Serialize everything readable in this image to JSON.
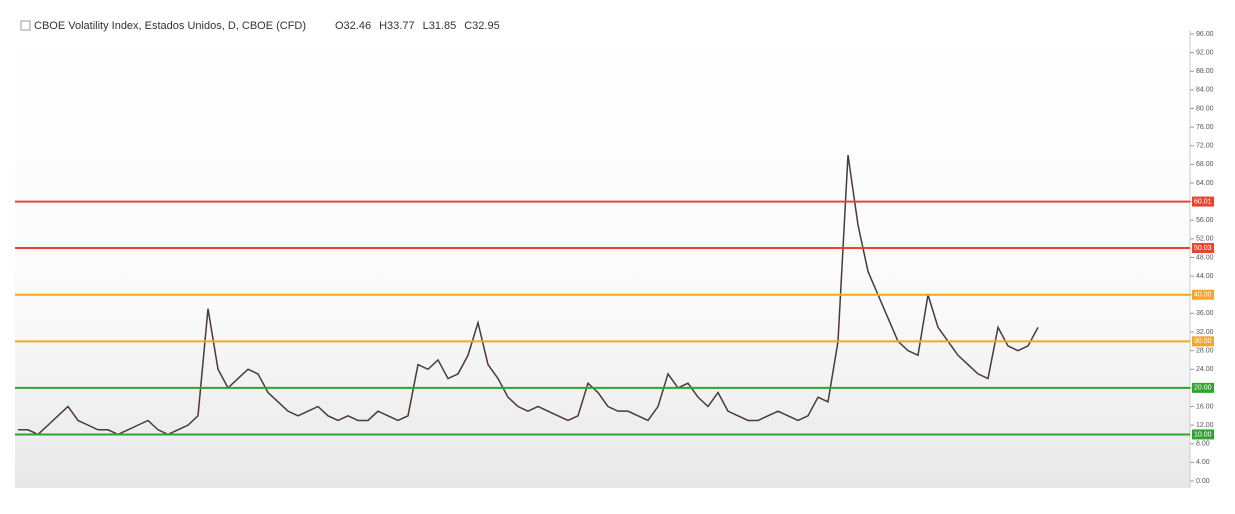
{
  "chart_data": {
    "type": "line",
    "title": "CBOE Volatility Index, Estados Unidos, D, CBOE (CFD)",
    "ohlc": [
      {
        "value": 32.46,
        "label": "O32.46"
      },
      {
        "value": 33.77,
        "label": "H33.77"
      },
      {
        "value": 31.85,
        "label": "L31.85"
      },
      {
        "value": 32.95,
        "label": "C32.95"
      }
    ],
    "series": [
      {
        "color": "#4a3a38",
        "values": [
          11,
          11,
          10,
          12,
          14,
          16,
          13,
          12,
          11,
          11,
          10,
          11,
          12,
          13,
          11,
          10,
          11,
          12,
          14,
          37,
          24,
          20,
          22,
          24,
          23,
          19,
          17,
          15,
          14,
          15,
          16,
          14,
          13,
          14,
          13,
          13,
          15,
          14,
          13,
          14,
          25,
          24,
          26,
          22,
          23,
          27,
          34,
          25,
          22,
          18,
          16,
          15,
          16,
          15,
          14,
          13,
          14,
          21,
          19,
          16,
          15,
          15,
          14,
          13,
          16,
          23,
          20,
          21,
          18,
          16,
          19,
          15,
          14,
          13,
          13,
          14,
          15,
          14,
          13,
          14,
          18,
          17,
          30,
          70,
          55,
          45,
          40,
          35,
          30,
          28,
          27,
          40,
          33,
          30,
          27,
          25,
          23,
          22,
          33,
          29,
          28,
          29,
          33
        ]
      }
    ],
    "levels": [
      {
        "value": 60.01,
        "label": "60.01",
        "color": "#e8442f"
      },
      {
        "value": 50.03,
        "label": "50.03",
        "color": "#e8442f"
      },
      {
        "value": 40.0,
        "label": "40.00",
        "color": "#f5a623"
      },
      {
        "value": 30.0,
        "label": "30.00",
        "color": "#f5a623"
      },
      {
        "value": 20.0,
        "label": "20.00",
        "color": "#2ea62e"
      },
      {
        "value": 10.0,
        "label": "10.00",
        "color": "#2ea62e"
      }
    ],
    "ylim": [
      0,
      96
    ],
    "yticks": [
      {
        "value": 0,
        "label": "0.00"
      },
      {
        "value": 4,
        "label": "4.00"
      },
      {
        "value": 8,
        "label": "8.00"
      },
      {
        "value": 12,
        "label": "12.00"
      },
      {
        "value": 16,
        "label": "16.00"
      },
      {
        "value": 20,
        "label": "20.00"
      },
      {
        "value": 24,
        "label": "24.00"
      },
      {
        "value": 28,
        "label": "28.00"
      },
      {
        "value": 32,
        "label": "32.00"
      },
      {
        "value": 36,
        "label": "36.00"
      },
      {
        "value": 40,
        "label": "40.00"
      },
      {
        "value": 44,
        "label": "44.00"
      },
      {
        "value": 48,
        "label": "48.00"
      },
      {
        "value": 52,
        "label": "52.00"
      },
      {
        "value": 56,
        "label": "56.00"
      },
      {
        "value": 60,
        "label": "60.00"
      },
      {
        "value": 64,
        "label": "64.00"
      },
      {
        "value": 68,
        "label": "68.00"
      },
      {
        "value": 72,
        "label": "72.00"
      },
      {
        "value": 76,
        "label": "76.00"
      },
      {
        "value": 80,
        "label": "80.00"
      },
      {
        "value": 84,
        "label": "84.00"
      },
      {
        "value": 88,
        "label": "88.00"
      },
      {
        "value": 92,
        "label": "92.00"
      },
      {
        "value": 96,
        "label": "96.00"
      }
    ]
  }
}
